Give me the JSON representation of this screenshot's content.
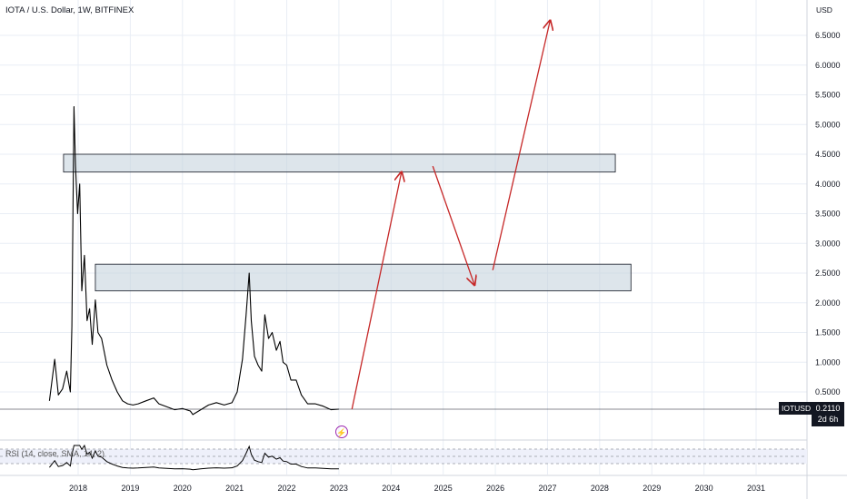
{
  "header": {
    "legend": "IOTA / U.S. Dollar, 1W, BITFINEX",
    "currency": "USD"
  },
  "price_label": {
    "symbol": "IOTUSD",
    "price": "0.2110",
    "countdown": "2d 6h"
  },
  "rsi": {
    "label": "RSI (14, close, SMA, 14, 2)"
  },
  "event_icon": "lightning-icon",
  "colors": {
    "price_line": "#000000",
    "arrow": "#c62828",
    "zone_fill": "#c7d3de",
    "zone_border": "#131722",
    "grid": "#e9eef5",
    "badge": "#9c27b0"
  },
  "chart_data": {
    "type": "line",
    "x_axis": {
      "ticks": [
        "2018",
        "2019",
        "2020",
        "2021",
        "2022",
        "2023",
        "2024",
        "2025",
        "2026",
        "2027",
        "2028",
        "2029",
        "2030",
        "2031"
      ]
    },
    "y_axis": {
      "scale": "linear",
      "ylim": [
        0,
        7.0
      ],
      "ticks": [
        "6.5000",
        "6.0000",
        "5.5000",
        "5.0000",
        "4.5000",
        "4.0000",
        "3.5000",
        "3.0000",
        "2.5000",
        "2.0000",
        "1.5000",
        "1.0000",
        "0.5000"
      ],
      "tick_values": [
        6.5,
        6.0,
        5.5,
        5.0,
        4.5,
        4.0,
        3.5,
        3.0,
        2.5,
        2.0,
        1.5,
        1.0,
        0.5
      ]
    },
    "series": [
      {
        "points": [
          [
            2017.45,
            0.35
          ],
          [
            2017.55,
            1.05
          ],
          [
            2017.62,
            0.45
          ],
          [
            2017.7,
            0.55
          ],
          [
            2017.78,
            0.85
          ],
          [
            2017.85,
            0.5
          ],
          [
            2017.88,
            1.6
          ],
          [
            2017.92,
            5.3
          ],
          [
            2017.95,
            4.3
          ],
          [
            2017.99,
            3.5
          ],
          [
            2018.03,
            4.0
          ],
          [
            2018.07,
            2.2
          ],
          [
            2018.12,
            2.8
          ],
          [
            2018.17,
            1.7
          ],
          [
            2018.22,
            1.9
          ],
          [
            2018.27,
            1.3
          ],
          [
            2018.33,
            2.05
          ],
          [
            2018.38,
            1.5
          ],
          [
            2018.45,
            1.4
          ],
          [
            2018.55,
            0.95
          ],
          [
            2018.65,
            0.7
          ],
          [
            2018.75,
            0.5
          ],
          [
            2018.85,
            0.35
          ],
          [
            2018.95,
            0.3
          ],
          [
            2019.05,
            0.28
          ],
          [
            2019.15,
            0.3
          ],
          [
            2019.3,
            0.35
          ],
          [
            2019.45,
            0.4
          ],
          [
            2019.55,
            0.3
          ],
          [
            2019.7,
            0.25
          ],
          [
            2019.85,
            0.2
          ],
          [
            2020.0,
            0.22
          ],
          [
            2020.15,
            0.18
          ],
          [
            2020.2,
            0.12
          ],
          [
            2020.35,
            0.2
          ],
          [
            2020.5,
            0.28
          ],
          [
            2020.65,
            0.32
          ],
          [
            2020.8,
            0.28
          ],
          [
            2020.95,
            0.32
          ],
          [
            2021.05,
            0.5
          ],
          [
            2021.15,
            1.05
          ],
          [
            2021.22,
            1.8
          ],
          [
            2021.28,
            2.5
          ],
          [
            2021.32,
            1.7
          ],
          [
            2021.38,
            1.1
          ],
          [
            2021.45,
            0.95
          ],
          [
            2021.52,
            0.85
          ],
          [
            2021.58,
            1.8
          ],
          [
            2021.65,
            1.4
          ],
          [
            2021.72,
            1.5
          ],
          [
            2021.8,
            1.2
          ],
          [
            2021.87,
            1.35
          ],
          [
            2021.93,
            1.0
          ],
          [
            2022.0,
            0.95
          ],
          [
            2022.08,
            0.7
          ],
          [
            2022.18,
            0.7
          ],
          [
            2022.28,
            0.45
          ],
          [
            2022.4,
            0.3
          ],
          [
            2022.55,
            0.3
          ],
          [
            2022.7,
            0.26
          ],
          [
            2022.85,
            0.2
          ],
          [
            2023.0,
            0.21
          ]
        ]
      }
    ],
    "zones": [
      {
        "from": 2017.72,
        "to": 2028.3,
        "low": 4.2,
        "high": 4.5
      },
      {
        "from": 2018.33,
        "to": 2028.6,
        "low": 2.2,
        "high": 2.65
      }
    ],
    "arrows": [
      {
        "from": [
          2023.25,
          0.21
        ],
        "to": [
          2024.2,
          4.2
        ]
      },
      {
        "from": [
          2024.8,
          4.3
        ],
        "to": [
          2025.6,
          2.3
        ]
      },
      {
        "from": [
          2025.95,
          2.55
        ],
        "to": [
          2027.05,
          6.75
        ]
      }
    ]
  }
}
